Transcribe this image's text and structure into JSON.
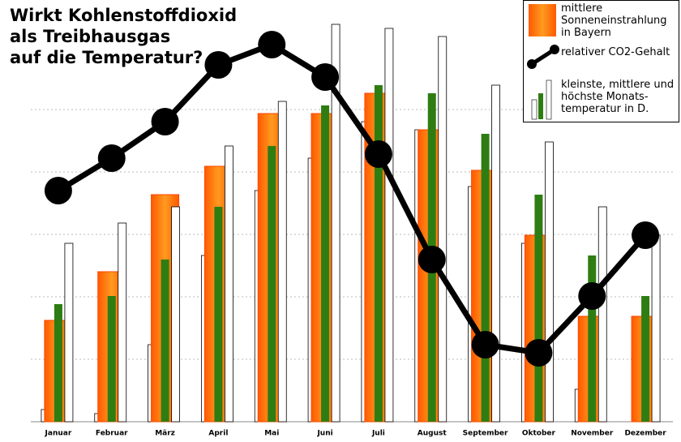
{
  "chart_data": {
    "type": "bar-line",
    "title": [
      "Wirkt Kohlenstoffdioxid",
      "als Treibhausgas",
      "auf die Temperatur?"
    ],
    "categories": [
      "Januar",
      "Februar",
      "März",
      "April",
      "Mai",
      "Juni",
      "Juli",
      "August",
      "September",
      "Oktober",
      "November",
      "Dezember"
    ],
    "ylim": [
      0,
      104
    ],
    "series": [
      {
        "name": "mittlere Sonneneinstrahlung in Bayern",
        "color": "#ff7700",
        "kind": "sun",
        "values": [
          25,
          37,
          56,
          63,
          76,
          76,
          81,
          72,
          62,
          46,
          26,
          26
        ]
      },
      {
        "name": "relativer CO2-Gehalt",
        "color": "#000000",
        "kind": "line",
        "values": [
          57,
          65,
          74,
          88,
          93,
          85,
          66,
          40,
          19,
          17,
          31,
          46
        ]
      },
      {
        "name": "kleinste, mittlere und höchste Monats-temperatur in D.",
        "color": "#ffffff",
        "kind": "tmin",
        "values": [
          3,
          2,
          19,
          41,
          57,
          65,
          74,
          72,
          58,
          44,
          8,
          0
        ]
      },
      {
        "color": "#2e7d12",
        "kind": "tmean",
        "values": [
          29,
          31,
          40,
          53,
          68,
          78,
          83,
          81,
          71,
          56,
          41,
          31
        ]
      },
      {
        "color": "#ffffff",
        "kind": "tmax",
        "values": [
          44,
          49,
          53,
          68,
          79,
          98,
          97,
          95,
          83,
          69,
          53,
          46
        ]
      }
    ]
  }
}
